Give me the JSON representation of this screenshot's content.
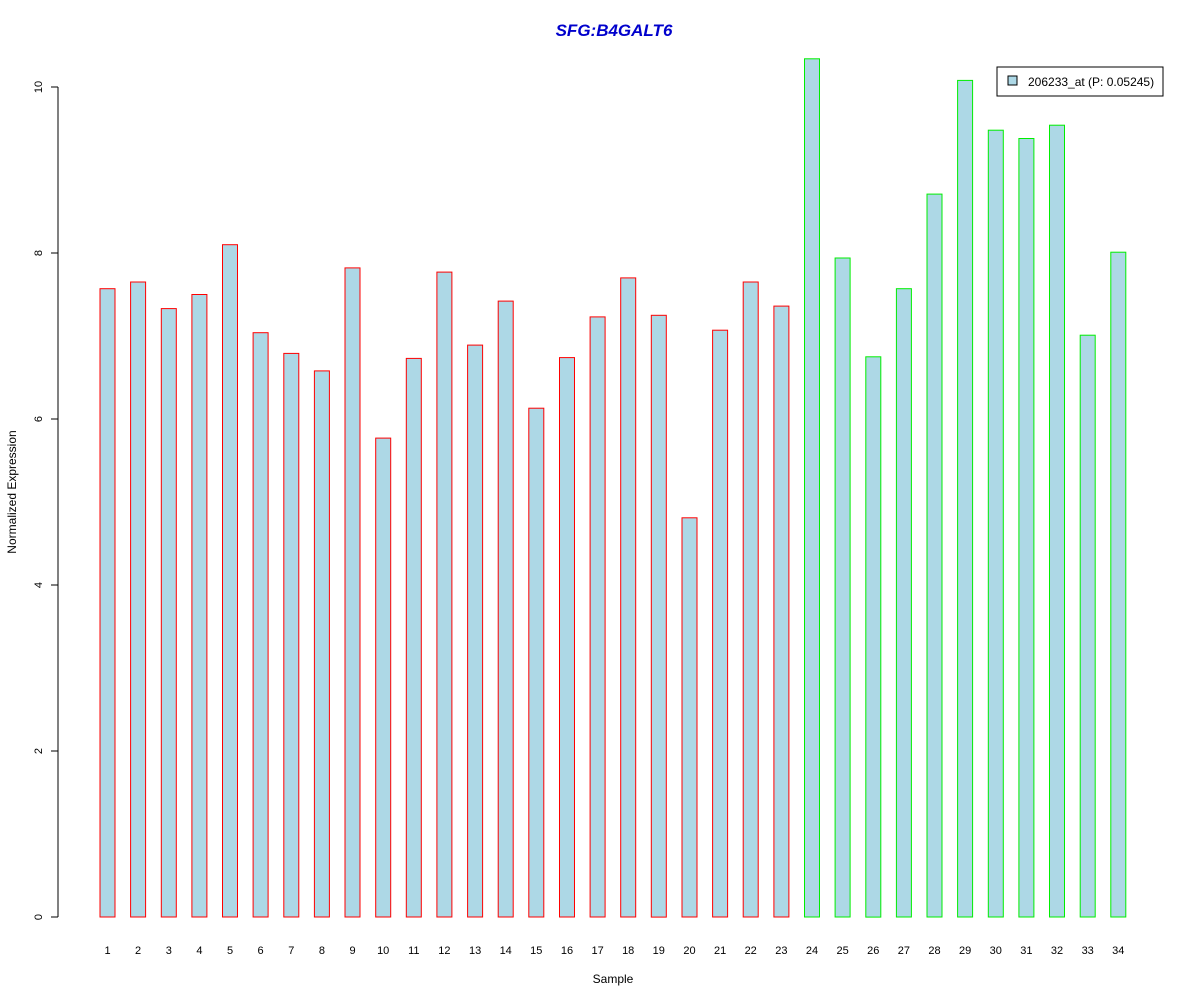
{
  "chart_data": {
    "type": "bar",
    "title": "SFG:B4GALT6",
    "xlabel": "Sample",
    "ylabel": "Normalized Expression",
    "ylim": [
      0,
      10.5
    ],
    "yticks": [
      "0",
      "2",
      "4",
      "6",
      "8",
      "10"
    ],
    "categories": [
      "1",
      "2",
      "3",
      "4",
      "5",
      "6",
      "7",
      "8",
      "9",
      "10",
      "11",
      "12",
      "13",
      "14",
      "15",
      "16",
      "17",
      "18",
      "19",
      "20",
      "21",
      "22",
      "23",
      "24",
      "25",
      "26",
      "27",
      "28",
      "29",
      "30",
      "31",
      "32",
      "33",
      "34"
    ],
    "series": [
      {
        "name": "206233_at (P: 0.05245)",
        "values": [
          7.57,
          7.65,
          7.33,
          7.5,
          8.1,
          7.04,
          6.79,
          6.58,
          7.82,
          5.77,
          6.73,
          7.77,
          6.89,
          7.42,
          6.13,
          6.74,
          7.23,
          7.7,
          7.25,
          4.81,
          7.07,
          7.65,
          7.36,
          10.34,
          7.94,
          6.75,
          7.57,
          8.71,
          10.08,
          9.48,
          9.38,
          9.54,
          7.01,
          8.01
        ]
      }
    ],
    "bar_fill": "#add8e6",
    "group_colors": [
      "#ff0000",
      "#00ee00"
    ],
    "group_of_bar": [
      0,
      0,
      0,
      0,
      0,
      0,
      0,
      0,
      0,
      0,
      0,
      0,
      0,
      0,
      0,
      0,
      0,
      0,
      0,
      0,
      0,
      0,
      0,
      1,
      1,
      1,
      1,
      1,
      1,
      1,
      1,
      1,
      1,
      1
    ],
    "title_color": "#0000cc",
    "legend_position": "top-right",
    "grid": false
  }
}
